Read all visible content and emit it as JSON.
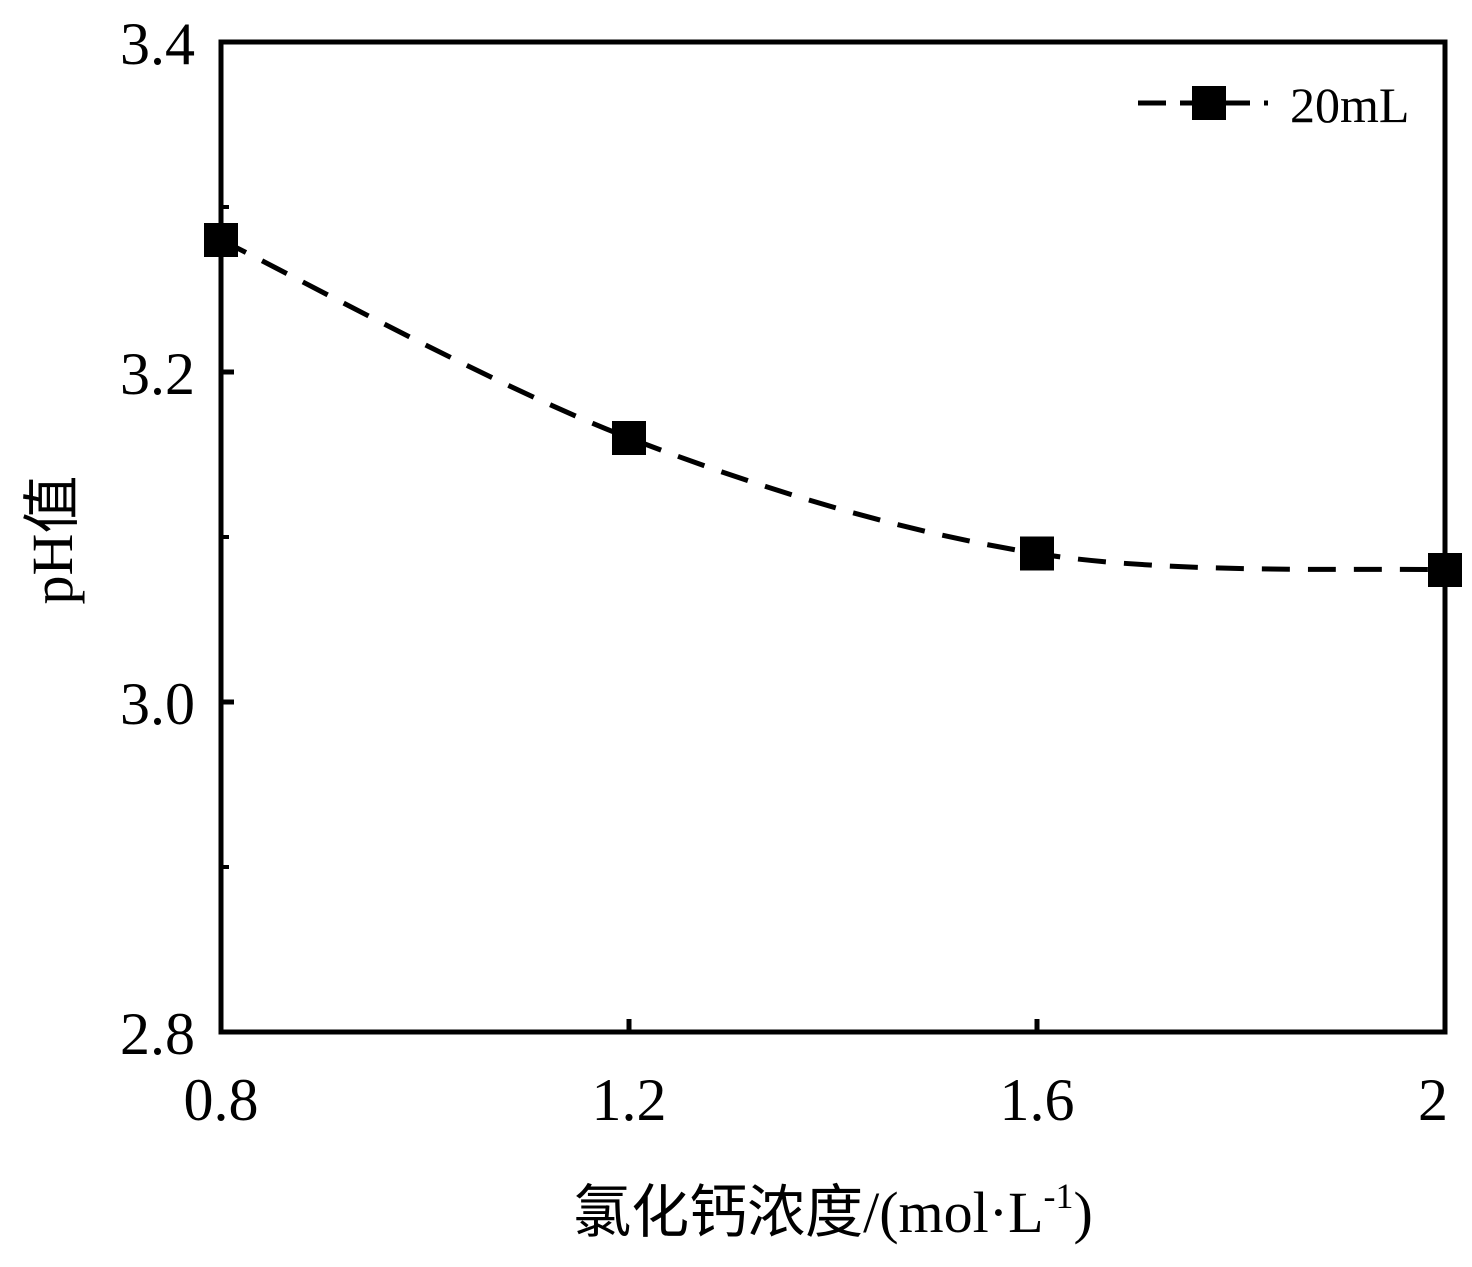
{
  "chart_data": {
    "type": "line",
    "xlabel": "氯化钙浓度/(mol·L",
    "xlabel_sup": "-1",
    "xlabel_close": ")",
    "ylabel": "pH值",
    "xlim": [
      0.8,
      2.0
    ],
    "ylim": [
      2.8,
      3.4
    ],
    "x_ticks": [
      0.8,
      1.2,
      1.6,
      2.0
    ],
    "x_tick_labels": [
      "0.8",
      "1.2",
      "1.6",
      "2"
    ],
    "y_ticks": [
      2.8,
      3.0,
      3.2,
      3.4
    ],
    "y_tick_labels": [
      "2.8",
      "3.0",
      "3.2",
      "3.4"
    ],
    "legend_position": "top-right",
    "series": [
      {
        "name": "20mL",
        "line_style": "dashed",
        "marker": "square",
        "color": "#000000",
        "x": [
          0.8,
          1.2,
          1.6,
          2.0
        ],
        "y": [
          3.28,
          3.16,
          3.09,
          3.08
        ]
      }
    ]
  }
}
